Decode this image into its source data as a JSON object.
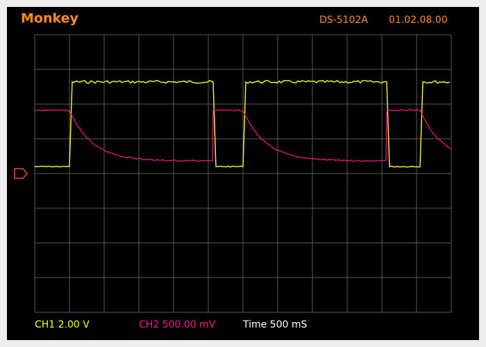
{
  "header": {
    "brand": "Monkey",
    "model": "DS-5102A",
    "version": "01.02.08.00"
  },
  "footer": {
    "ch1": "CH1 2.00 V",
    "ch2": "CH2 500.00 mV",
    "time": "Time 500 mS"
  }
}
